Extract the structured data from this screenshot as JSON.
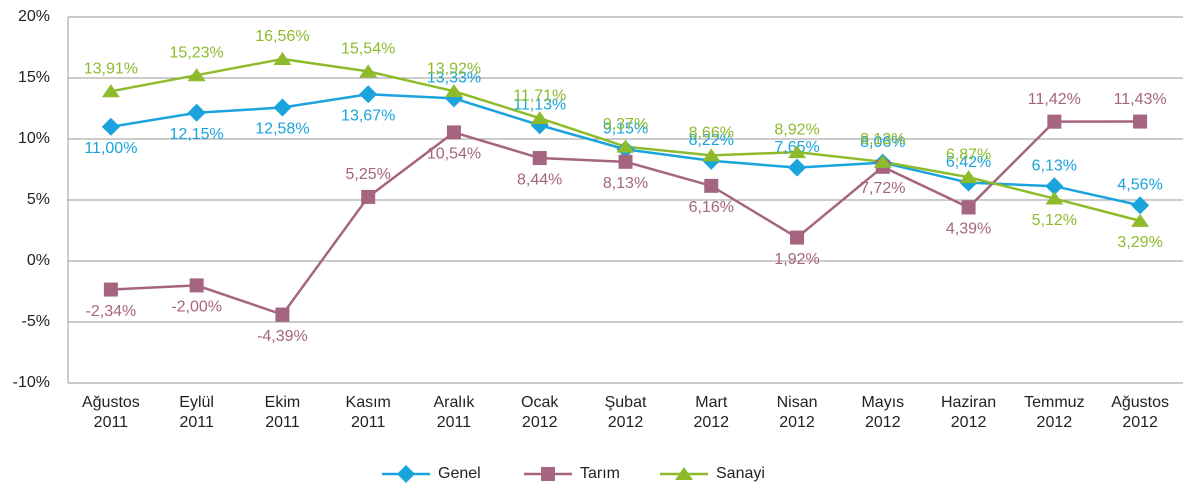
{
  "chart_data": {
    "type": "line",
    "categories": [
      "Ağustos 2011",
      "Eylül 2011",
      "Ekim 2011",
      "Kasım 2011",
      "Aralık 2011",
      "Ocak 2012",
      "Şubat 2012",
      "Mart 2012",
      "Nisan 2012",
      "Mayıs 2012",
      "Haziran 2012",
      "Temmuz 2012",
      "Ağustos 2012"
    ],
    "series": [
      {
        "name": "Genel",
        "color": "#1aa3dc",
        "marker": "diamond",
        "values": [
          11.0,
          12.15,
          12.58,
          13.67,
          13.33,
          11.13,
          9.15,
          8.22,
          7.65,
          8.06,
          6.42,
          6.13,
          4.56
        ],
        "value_labels": [
          "11,00%",
          "12,15%",
          "12,58%",
          "13,67%",
          "13,33%",
          "11,13%",
          "9,15%",
          "8,22%",
          "7,65%",
          "8,06%",
          "6,42%",
          "6,13%",
          "4,56%"
        ]
      },
      {
        "name": "Tarım",
        "color": "#a5647f",
        "marker": "square",
        "values": [
          -2.34,
          -2.0,
          -4.39,
          5.25,
          10.54,
          8.44,
          8.13,
          6.16,
          1.92,
          7.72,
          4.39,
          11.42,
          11.43
        ],
        "value_labels": [
          "-2,34%",
          "-2,00%",
          "-4,39%",
          "5,25%",
          "10,54%",
          "8,44%",
          "8,13%",
          "6,16%",
          "1,92%",
          "7,72%",
          "4,39%",
          "11,42%",
          "11,43%"
        ]
      },
      {
        "name": "Sanayi",
        "color": "#8dbb2b",
        "marker": "triangle",
        "values": [
          13.91,
          15.23,
          16.56,
          15.54,
          13.92,
          11.71,
          9.37,
          8.66,
          8.92,
          8.13,
          6.87,
          5.12,
          3.29
        ],
        "value_labels": [
          "13,91%",
          "15,23%",
          "16,56%",
          "15,54%",
          "13,92%",
          "11,71%",
          "9,37%",
          "8,66%",
          "8,92%",
          "8,13%",
          "6,87%",
          "5,12%",
          "3,29%"
        ]
      }
    ],
    "ylim": [
      -10,
      20
    ],
    "yticks": [
      {
        "value": -10,
        "label": "-10%"
      },
      {
        "value": -5,
        "label": "-5%"
      },
      {
        "value": 0,
        "label": "0%"
      },
      {
        "value": 5,
        "label": "5%"
      },
      {
        "value": 10,
        "label": "10%"
      },
      {
        "value": 15,
        "label": "15%"
      },
      {
        "value": 20,
        "label": "20%"
      }
    ],
    "grid": true,
    "legend": "bottom"
  }
}
